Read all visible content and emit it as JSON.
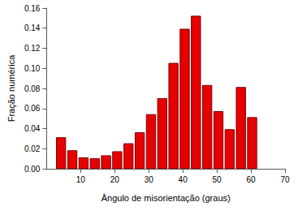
{
  "chart_data": {
    "type": "histogram",
    "x_label": "Ângulo de misorientação (graus)",
    "y_label": "Fração numérica",
    "bins": [
      2.6,
      5.9,
      9.2,
      12.5,
      15.8,
      19.1,
      22.4,
      25.7,
      29.0,
      32.3,
      35.6,
      38.9,
      42.2,
      45.5,
      48.8,
      52.1,
      55.4,
      58.7,
      62.0
    ],
    "values": [
      0.031,
      0.018,
      0.011,
      0.01,
      0.013,
      0.017,
      0.025,
      0.036,
      0.054,
      0.07,
      0.105,
      0.139,
      0.152,
      0.083,
      0.057,
      0.039,
      0.081,
      0.051
    ],
    "color": "#e60000",
    "xlim": [
      0,
      70
    ],
    "xticks": [
      10,
      20,
      30,
      40,
      50,
      60,
      70
    ],
    "ylim": [
      0,
      0.16
    ],
    "yticks": [
      {
        "value": 0,
        "label": "0.00"
      },
      {
        "value": 0.02,
        "label": "0.02"
      },
      {
        "value": 0.04,
        "label": "0.04"
      },
      {
        "value": 0.06,
        "label": "0.06"
      },
      {
        "value": 0.08,
        "label": "0.08"
      },
      {
        "value": 0.1,
        "label": "0.10"
      },
      {
        "value": 0.12,
        "label": "0.12"
      },
      {
        "value": 0.14,
        "label": "0.14"
      },
      {
        "value": 0.16,
        "label": "0.16"
      }
    ],
    "grid": false
  }
}
